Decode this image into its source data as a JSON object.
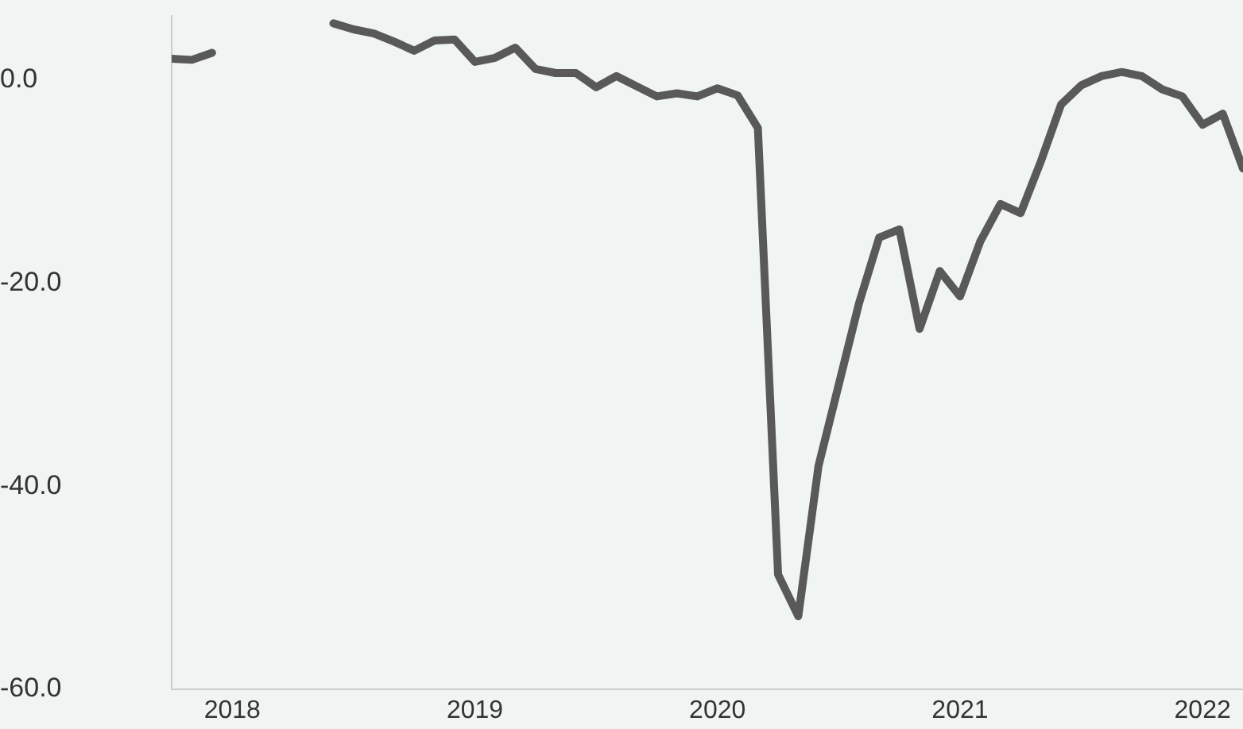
{
  "chart_data": {
    "type": "line",
    "x": [
      "2017-10",
      "2017-11",
      "2017-12",
      "2018-01",
      "2018-02",
      "2018-03",
      "2018-04",
      "2018-05",
      "2018-06",
      "2018-07",
      "2018-08",
      "2018-09",
      "2018-10",
      "2018-11",
      "2018-12",
      "2019-01",
      "2019-02",
      "2019-03",
      "2019-04",
      "2019-05",
      "2019-06",
      "2019-07",
      "2019-08",
      "2019-09",
      "2019-10",
      "2019-11",
      "2019-12",
      "2020-01",
      "2020-02",
      "2020-03",
      "2020-04",
      "2020-05",
      "2020-06",
      "2020-07",
      "2020-08",
      "2020-09",
      "2020-10",
      "2020-11",
      "2020-12",
      "2021-01",
      "2021-02",
      "2021-03",
      "2021-04",
      "2021-05",
      "2021-06",
      "2021-07",
      "2021-08",
      "2021-09",
      "2021-10",
      "2021-11",
      "2021-12",
      "2022-01",
      "2022-02",
      "2022-03"
    ],
    "series": [
      {
        "color": "#595959",
        "values": [
          2.1,
          2.0,
          2.7,
          null,
          null,
          null,
          null,
          null,
          5.6,
          5.0,
          4.6,
          3.8,
          2.9,
          3.9,
          4.0,
          1.8,
          2.2,
          3.2,
          1.1,
          0.7,
          0.7,
          -0.7,
          0.4,
          -0.6,
          -1.6,
          -1.3,
          -1.6,
          -0.8,
          -1.5,
          -4.7,
          -48.7,
          -52.8,
          -38,
          -30,
          -22.0,
          -15.5,
          -14.7,
          -24.5,
          -18.8,
          -21.3,
          -15.9,
          -12.2,
          -13.1,
          -8.0,
          -2.4,
          -0.5,
          0.4,
          0.8,
          0.4,
          -0.9,
          -1.6,
          -4.4,
          -3.3,
          -8.7
        ]
      }
    ],
    "xlim": [
      "2017-10",
      "2022-03"
    ],
    "xticks": [
      {
        "value": "2018",
        "label": "2018"
      },
      {
        "value": "2019",
        "label": "2019"
      },
      {
        "value": "2020",
        "label": "2020"
      },
      {
        "value": "2021",
        "label": "2021"
      },
      {
        "value": "2022",
        "label": "2022"
      }
    ],
    "ylim": [
      -60,
      6.3
    ],
    "yticks": [
      {
        "value": -60,
        "label": "-60.0"
      },
      {
        "value": -40,
        "label": "-40.0"
      },
      {
        "value": -20,
        "label": "-20.0"
      },
      {
        "value": 0,
        "label": "0.0"
      }
    ],
    "grid": false,
    "legend": false,
    "marker": "none",
    "line_style": "solid"
  }
}
